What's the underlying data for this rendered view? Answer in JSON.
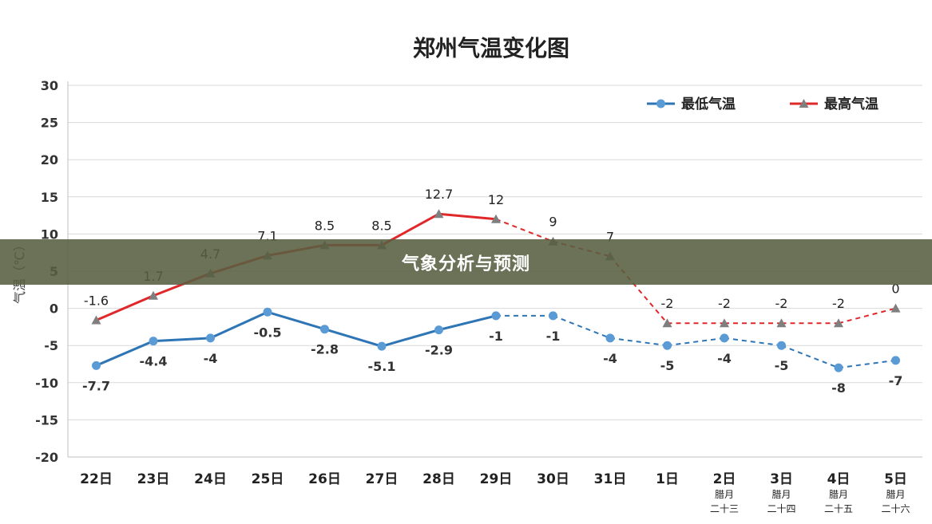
{
  "chart_data": {
    "type": "line",
    "title": "郑州气温变化图",
    "ylabel": "气温（℃）",
    "ylim": [
      -20,
      30
    ],
    "yticks": [
      30,
      25,
      20,
      15,
      10,
      5,
      0,
      -5,
      -10,
      -15,
      -20
    ],
    "grid": true,
    "legend_position": "top-right",
    "categories": [
      "22日",
      "23日",
      "24日",
      "25日",
      "26日",
      "27日",
      "28日",
      "29日",
      "30日",
      "31日",
      "1日",
      "2日",
      "3日",
      "4日",
      "5日"
    ],
    "category_sublabels": [
      [
        "",
        ""
      ],
      [
        "",
        ""
      ],
      [
        "",
        ""
      ],
      [
        "",
        ""
      ],
      [
        "",
        ""
      ],
      [
        "",
        ""
      ],
      [
        "",
        ""
      ],
      [
        "",
        ""
      ],
      [
        "",
        ""
      ],
      [
        "",
        ""
      ],
      [
        "",
        ""
      ],
      [
        "腊月",
        "二十三"
      ],
      [
        "腊月",
        "二十四"
      ],
      [
        "腊月",
        "二十五"
      ],
      [
        "腊月",
        "二十六"
      ]
    ],
    "forecast_from_index": 7,
    "series": [
      {
        "name": "最低气温",
        "color": "#2e75b6",
        "marker": "circle",
        "values": [
          -7.7,
          -4.4,
          -4,
          -0.5,
          -2.8,
          -5.1,
          -2.9,
          -1,
          -1,
          -4,
          -5,
          -4,
          -5,
          -8,
          -7
        ],
        "labels": [
          "-7.7",
          "-4.4",
          "-4",
          "-0.5",
          "-2.8",
          "-5.1",
          "-2.9",
          "-1",
          "-1",
          "-4",
          "-5",
          "-4",
          "-5",
          "-8",
          "-7"
        ]
      },
      {
        "name": "最高气温",
        "color": "#e0282a",
        "marker": "triangle",
        "values": [
          -1.6,
          1.7,
          4.7,
          7.1,
          8.5,
          8.5,
          12.7,
          12,
          9,
          7,
          -2,
          -2,
          -2,
          -2,
          0
        ],
        "labels": [
          "-1.6",
          "1.7",
          "4.7",
          "7.1",
          "8.5",
          "8.5",
          "12.7",
          "12",
          "9",
          "7",
          "-2",
          "-2",
          "-2",
          "-2",
          "0"
        ]
      }
    ]
  },
  "banner": {
    "text": "气象分析与预测"
  }
}
